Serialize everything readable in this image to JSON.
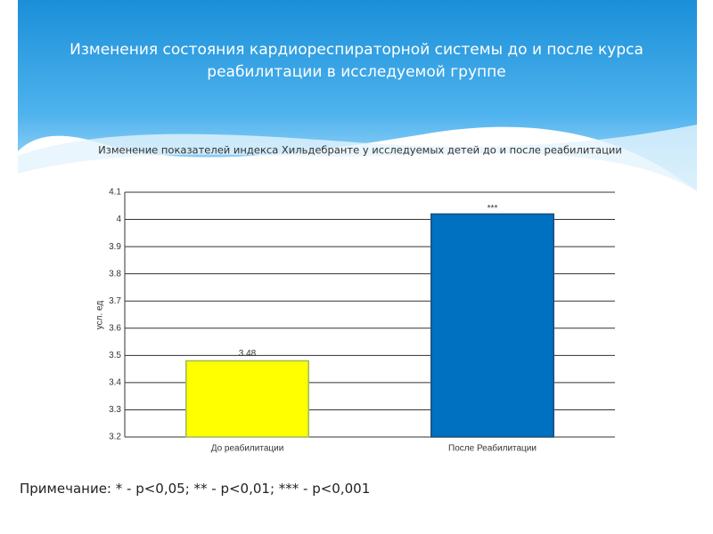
{
  "header": {
    "title": "Изменения состояния кардиореспираторной системы до и после курса реабилитации в исследуемой группе"
  },
  "chart_data": {
    "type": "bar",
    "title": "Изменение показателей индекса Хильдебранте у исследуемых детей до и после реабилитации",
    "y_label": "усл. ед",
    "categories": [
      "До реабилитации",
      "После Реабилитации"
    ],
    "values": [
      3.48,
      4.02
    ],
    "colors": [
      "#ffff00",
      "#0070c0"
    ],
    "annotations": [
      "***"
    ],
    "ylim": [
      3.2,
      4.1
    ],
    "yticks": [
      3.2,
      3.3,
      3.4,
      3.5,
      3.6,
      3.7,
      3.8,
      3.9,
      4,
      4.1
    ],
    "grid": true
  },
  "note": "Примечание: * - p<0,05; ** - p<0,01; *** - p<0,001"
}
